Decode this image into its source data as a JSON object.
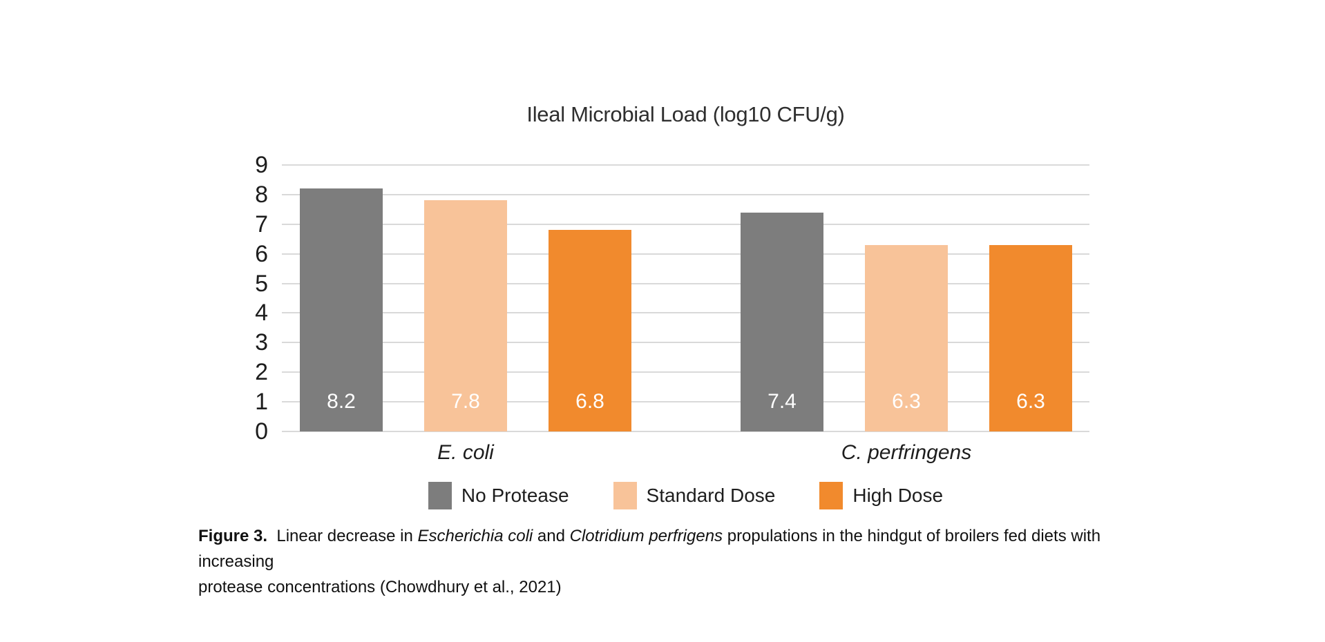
{
  "page": {
    "background": "#ffffff"
  },
  "chart_data": {
    "type": "bar",
    "title": "Ileal Microbial Load (log10 CFU/g)",
    "categories": [
      "E. coli",
      "C. perfringens"
    ],
    "series": [
      {
        "name": "No Protease",
        "color": "#7d7d7d",
        "values": [
          8.2,
          7.4
        ]
      },
      {
        "name": "Standard Dose",
        "color": "#f8c399",
        "values": [
          7.8,
          6.3
        ]
      },
      {
        "name": "High Dose",
        "color": "#f18a2d",
        "values": [
          6.8,
          6.3
        ]
      }
    ],
    "bar_value_labels": [
      [
        "8.2",
        "7.8",
        "6.8"
      ],
      [
        "7.4",
        "6.3",
        "6.3"
      ]
    ],
    "ylim": [
      0,
      9
    ],
    "yticks": [
      0,
      1,
      2,
      3,
      4,
      5,
      6,
      7,
      8,
      9
    ],
    "xlabel": "",
    "ylabel": "",
    "grid": true,
    "gridline_color": "#d9d9d9",
    "legend_position": "bottom",
    "value_label_color": "#ffffff"
  },
  "caption": {
    "segments": [
      {
        "text": "Figure 3.",
        "bold": true
      },
      {
        "text": "  Linear decrease in "
      },
      {
        "text": "Escherichia coli",
        "italic": true
      },
      {
        "text": " and "
      },
      {
        "text": "Clotridium perfrigens",
        "italic": true
      },
      {
        "text": " propulations in the hindgut of broilers fed diets with increasing"
      }
    ],
    "line2": "protease concentrations (Chowdhury et al., 2021)"
  }
}
